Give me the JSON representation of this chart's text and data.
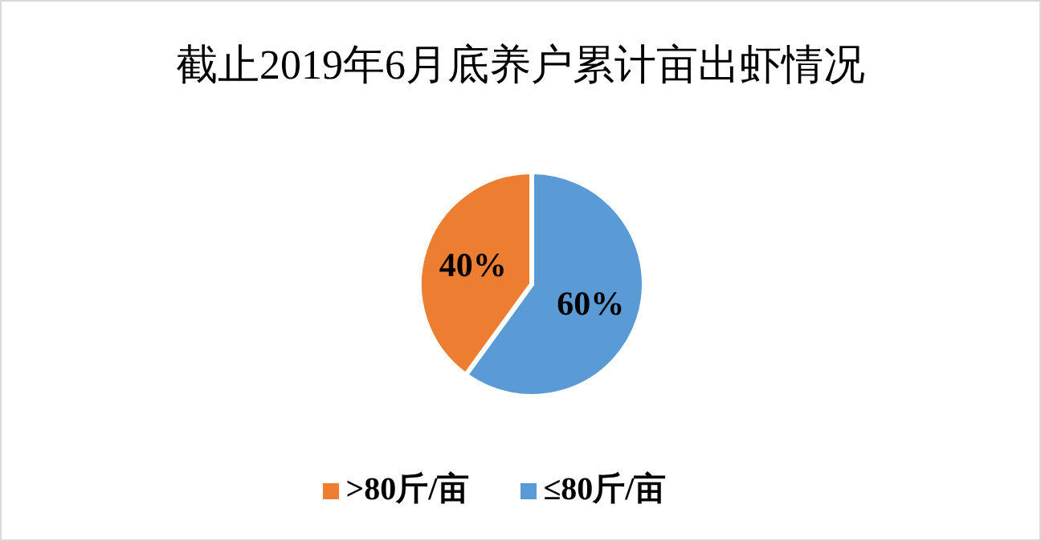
{
  "chart_data": {
    "type": "pie",
    "title": "截止2019年6月底养户累计亩出虾情况",
    "categories": [
      "≤80斤/亩",
      ">80斤/亩"
    ],
    "values": [
      60,
      40
    ],
    "colors": [
      "#5b9bd5",
      "#ed7d31"
    ],
    "value_labels": [
      "60%",
      "40%"
    ],
    "legend": "bottom"
  }
}
